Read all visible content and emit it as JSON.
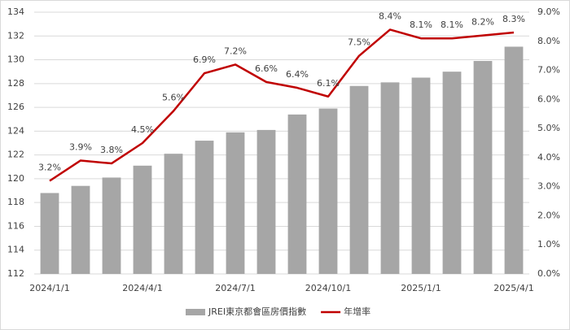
{
  "chart_data": {
    "type": "bar-line",
    "categories": [
      "2024/1/1",
      null,
      null,
      "2024/4/1",
      null,
      null,
      "2024/7/1",
      null,
      null,
      "2024/10/1",
      null,
      null,
      "2025/1/1",
      null,
      null,
      "2025/4/1"
    ],
    "series": [
      {
        "name": "JREI東京都會區房價指數",
        "type": "bar",
        "color": "#a6a6a6",
        "values": [
          118.8,
          119.4,
          120.1,
          121.1,
          122.1,
          123.2,
          123.9,
          124.1,
          125.4,
          125.9,
          127.8,
          128.1,
          128.5,
          129.0,
          129.9,
          131.1
        ]
      },
      {
        "name": "年增率",
        "type": "line",
        "axis": "y2",
        "color": "#c00000",
        "values": [
          3.2,
          3.9,
          3.8,
          4.5,
          5.6,
          6.9,
          7.2,
          6.6,
          6.4,
          6.1,
          7.5,
          8.4,
          8.1,
          8.1,
          8.2,
          8.3
        ],
        "value_labels": [
          "3.2%",
          "3.9%",
          "3.8%",
          "4.5%",
          "5.6%",
          "6.9%",
          "7.2%",
          "6.6%",
          "6.4%",
          "6.1%",
          "7.5%",
          "8.4%",
          "8.1%",
          "8.1%",
          "8.2%",
          "8.3%"
        ]
      }
    ],
    "ylim": [
      112,
      134
    ],
    "yticks": [
      112,
      114,
      116,
      118,
      120,
      122,
      124,
      126,
      128,
      130,
      132,
      134
    ],
    "y2lim": [
      0,
      9
    ],
    "y2ticks": [
      {
        "value": 0,
        "label": "0.0%"
      },
      {
        "value": 1,
        "label": "1.0%"
      },
      {
        "value": 2,
        "label": "2.0%"
      },
      {
        "value": 3,
        "label": "3.0%"
      },
      {
        "value": 4,
        "label": "4.0%"
      },
      {
        "value": 5,
        "label": "5.0%"
      },
      {
        "value": 6,
        "label": "6.0%"
      },
      {
        "value": 7,
        "label": "7.0%"
      },
      {
        "value": 8,
        "label": "8.0%"
      },
      {
        "value": 9,
        "label": "9.0%"
      }
    ],
    "grid": true,
    "legend": "bottom"
  }
}
